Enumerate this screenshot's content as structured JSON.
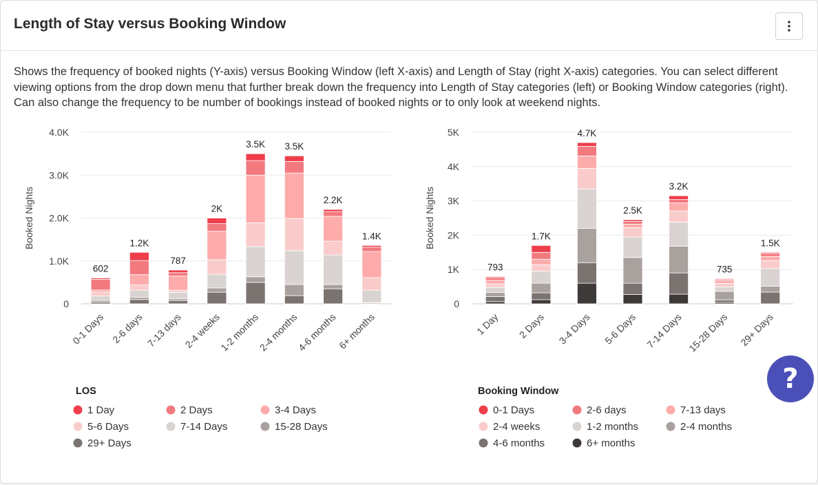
{
  "header": {
    "title": "Length of Stay versus Booking Window"
  },
  "description": "Shows the frequency of booked nights (Y-axis) versus Booking Window (left X-axis) and Length of Stay (right X-axis) categories. You can select different viewing options from the drop down menu that further break down the frequency into Length of Stay categories (left) or Booking Window categories (right). Can also change the frequency to be number of bookings instead of booked nights or to only look at weekend nights.",
  "help_button": "?",
  "chart_data": [
    {
      "type": "bar",
      "stacked": true,
      "ylabel": "Booked Nights",
      "legend_title": "LOS",
      "ylim": [
        0,
        4000
      ],
      "yticks": [
        0,
        {
          "value": 1000,
          "label": "1.0K"
        },
        {
          "value": 2000,
          "label": "2.0K"
        },
        {
          "value": 3000,
          "label": "3.0K"
        },
        {
          "value": 4000,
          "label": "4.0K"
        }
      ],
      "categories": [
        "0-1 Days",
        "2-6 days",
        "7-13 days",
        "2-4 weeks",
        "1-2 months",
        "2-4 months",
        "4-6 months",
        "6+ months"
      ],
      "series": [
        {
          "name": "1 Day",
          "color": "#ee3e4b",
          "values": [
            30,
            190,
            60,
            130,
            160,
            130,
            50,
            40
          ]
        },
        {
          "name": "2 Days",
          "color": "#f27a7f",
          "values": [
            250,
            330,
            80,
            180,
            340,
            270,
            110,
            100
          ]
        },
        {
          "name": "3-4 Days",
          "color": "#fdabab",
          "values": [
            50,
            240,
            330,
            660,
            1110,
            1060,
            580,
            610
          ]
        },
        {
          "name": "5-6 Days",
          "color": "#f9cccb",
          "values": [
            90,
            120,
            50,
            340,
            560,
            750,
            320,
            290
          ]
        },
        {
          "name": "7-14 Days",
          "color": "#d9d4d2",
          "values": [
            100,
            170,
            150,
            320,
            700,
            790,
            690,
            290
          ]
        },
        {
          "name": "15-28 Days",
          "color": "#a8a19e",
          "values": [
            40,
            50,
            40,
            100,
            130,
            260,
            100,
            10
          ]
        },
        {
          "name": "29+ Days",
          "color": "#7a7370",
          "values": [
            42,
            100,
            77,
            270,
            500,
            190,
            350,
            20
          ]
        }
      ],
      "totals": [
        602,
        1200,
        787,
        2000,
        3500,
        3450,
        2200,
        1360
      ],
      "total_labels": [
        "602",
        "1.2K",
        "787",
        "2K",
        "3.5K",
        "3.5K",
        "2.2K",
        "1.4K"
      ]
    },
    {
      "type": "bar",
      "stacked": true,
      "ylabel": "Booked Nights",
      "legend_title": "Booking Window",
      "ylim": [
        0,
        5000
      ],
      "yticks": [
        0,
        {
          "value": 1000,
          "label": "1K"
        },
        {
          "value": 2000,
          "label": "2K"
        },
        {
          "value": 3000,
          "label": "3K"
        },
        {
          "value": 4000,
          "label": "4K"
        },
        {
          "value": 5000,
          "label": "5K"
        }
      ],
      "categories": [
        "1 Day",
        "2 Days",
        "3-4 Days",
        "5-6 Days",
        "7-14 Days",
        "15-28 Days",
        "29+ Days"
      ],
      "series": [
        {
          "name": "0-1 Days",
          "color": "#ee3e4b",
          "values": [
            30,
            200,
            110,
            50,
            110,
            20,
            30
          ]
        },
        {
          "name": "2-6 days",
          "color": "#f27a7f",
          "values": [
            80,
            200,
            280,
            80,
            100,
            40,
            90
          ]
        },
        {
          "name": "7-13 days",
          "color": "#fdabab",
          "values": [
            100,
            160,
            360,
            100,
            230,
            80,
            120
          ]
        },
        {
          "name": "2-4 weeks",
          "color": "#f9cccb",
          "values": [
            100,
            190,
            600,
            270,
            330,
            100,
            230
          ]
        },
        {
          "name": "1-2 months",
          "color": "#d9d4d2",
          "values": [
            150,
            350,
            1150,
            600,
            700,
            130,
            520
          ]
        },
        {
          "name": "2-4 months",
          "color": "#a8a19e",
          "values": [
            120,
            280,
            1000,
            750,
            780,
            250,
            170
          ]
        },
        {
          "name": "4-6 months",
          "color": "#7a7370",
          "values": [
            150,
            200,
            600,
            330,
            620,
            75,
            340
          ]
        },
        {
          "name": "6+ months",
          "color": "#3d3a39",
          "values": [
            63,
            120,
            600,
            270,
            280,
            40,
            0
          ]
        }
      ],
      "totals": [
        793,
        1700,
        4700,
        2450,
        3150,
        735,
        1500
      ],
      "total_labels": [
        "793",
        "1.7K",
        "4.7K",
        "2.5K",
        "3.2K",
        "735",
        "1.5K"
      ]
    }
  ]
}
